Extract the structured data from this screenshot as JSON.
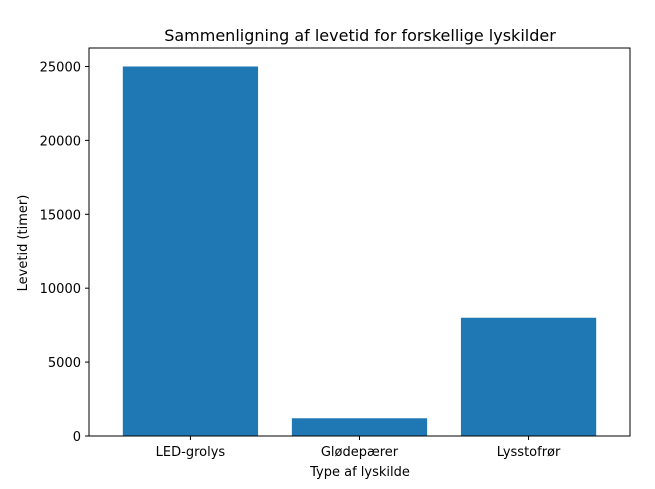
{
  "chart_data": {
    "type": "bar",
    "title": "Sammenligning af levetid for forskellige lyskilder",
    "xlabel": "Type af lyskilde",
    "ylabel": "Levetid (timer)",
    "categories": [
      "LED-grolys",
      "Glødepærer",
      "Lysstofrør"
    ],
    "values": [
      25000,
      1200,
      8000
    ],
    "ylim": [
      0,
      26250
    ],
    "yticks": [
      0,
      5000,
      10000,
      15000,
      20000,
      25000
    ],
    "grid": false,
    "bar_color": "#1f77b4"
  }
}
